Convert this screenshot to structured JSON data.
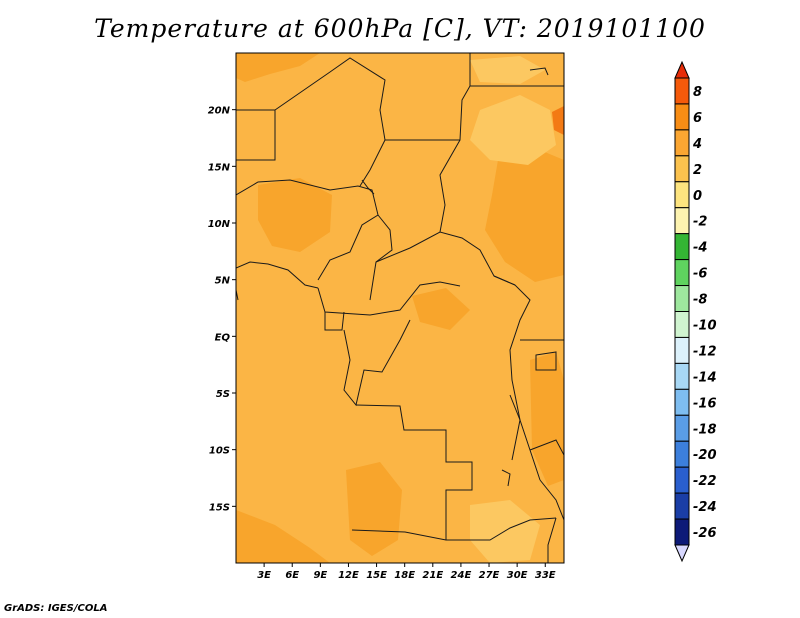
{
  "title": "Temperature at 600hPa [C], VT: 2019101100",
  "credit": "GrADS: IGES/COLA",
  "map": {
    "lon_range": [
      0,
      35
    ],
    "lat_range": [
      -20,
      25
    ],
    "lat_ticks": [
      {
        "value": 20,
        "label": "20N"
      },
      {
        "value": 15,
        "label": "15N"
      },
      {
        "value": 10,
        "label": "10N"
      },
      {
        "value": 5,
        "label": "5N"
      },
      {
        "value": 0,
        "label": "EQ"
      },
      {
        "value": -5,
        "label": "5S"
      },
      {
        "value": -10,
        "label": "10S"
      },
      {
        "value": -15,
        "label": "15S"
      }
    ],
    "lon_ticks": [
      {
        "value": 3,
        "label": "3E"
      },
      {
        "value": 6,
        "label": "6E"
      },
      {
        "value": 9,
        "label": "9E"
      },
      {
        "value": 12,
        "label": "12E"
      },
      {
        "value": 15,
        "label": "15E"
      },
      {
        "value": 18,
        "label": "18E"
      },
      {
        "value": 21,
        "label": "21E"
      },
      {
        "value": 24,
        "label": "24E"
      },
      {
        "value": 27,
        "label": "27E"
      },
      {
        "value": 30,
        "label": "30E"
      },
      {
        "value": 33,
        "label": "33E"
      }
    ],
    "base_color": "#fbb545"
  },
  "colorbar": {
    "levels": [
      "8",
      "6",
      "4",
      "2",
      "0",
      "-2",
      "-4",
      "-6",
      "-8",
      "-10",
      "-12",
      "-14",
      "-16",
      "-18",
      "-20",
      "-22",
      "-24",
      "-26"
    ],
    "colors": [
      "#e62c08",
      "#f55a0b",
      "#f88d15",
      "#fba632",
      "#fbc24e",
      "#fde47f",
      "#fdf3b0",
      "#34b534",
      "#5fd35f",
      "#9ee79e",
      "#d0f4d0",
      "#dcf1fb",
      "#a8d8f5",
      "#7ebdf0",
      "#5a9de6",
      "#3c7fdc",
      "#2a5fce",
      "#1a3ea6",
      "#0d1a78",
      "#d8d8ff"
    ]
  }
}
